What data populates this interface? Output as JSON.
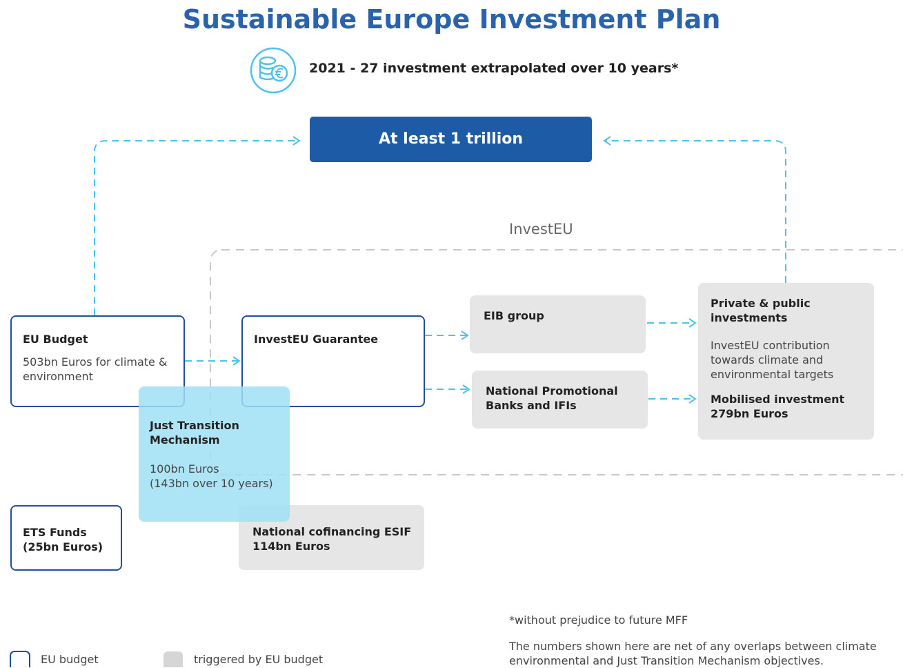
{
  "title": "Sustainable Europe Investment Plan",
  "subtitle": "2021 - 27 investment extrapolated over 10 years*",
  "total": "At least 1 trillion",
  "region_label": "InvestEU",
  "nodes": {
    "eu_budget": {
      "title": "EU Budget",
      "text": "503bn Euros for climate & environment"
    },
    "guarantee": {
      "title": "InvestEU Guarantee"
    },
    "just_transition": {
      "title": "Just Transition Mechanism",
      "lines": [
        "100bn Euros",
        "(143bn over 10 years)"
      ]
    },
    "eib": {
      "title": "EIB group"
    },
    "npb": {
      "title": "National Promotional Banks and IFIs"
    },
    "private": {
      "title": "Private & public investments",
      "text": "InvestEU contribution towards climate and environmental targets",
      "title2": "Mobilised investment 279bn Euros"
    },
    "ets": {
      "title": "ETS Funds (25bn Euros)"
    },
    "cofinancing": {
      "title": "National cofinancing ESIF 114bn Euros"
    }
  },
  "legend": [
    "EU budget",
    "triggered by EU budget"
  ],
  "footnote": "*without prejudice to future MFF",
  "note_lines": [
    "The numbers shown here are net of any overlaps between climate",
    "environmental and Just Transition Mechanism objectives."
  ]
}
